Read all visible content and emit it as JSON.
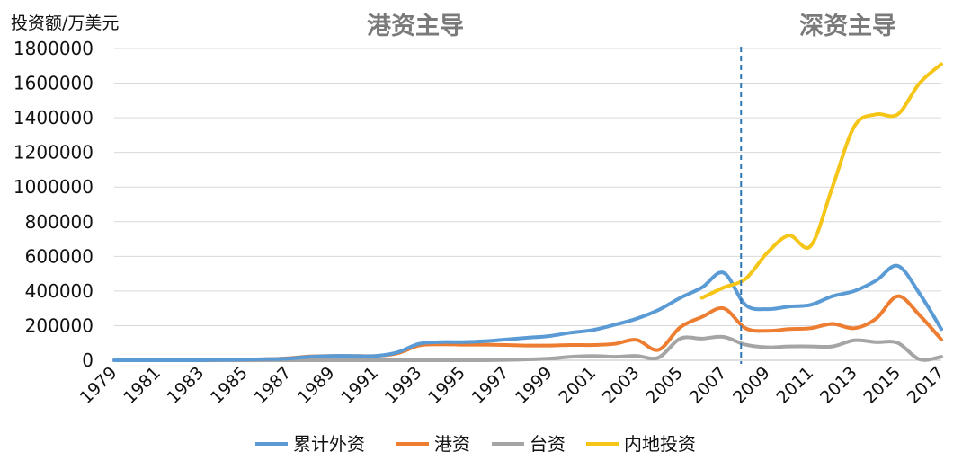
{
  "chart_data": {
    "type": "line",
    "ylabel": "投资额/万美元",
    "ylim": [
      0,
      1800000
    ],
    "yticks": [
      0,
      200000,
      400000,
      600000,
      800000,
      1000000,
      1200000,
      1400000,
      1600000,
      1800000
    ],
    "ytick_labels": [
      "0",
      "200000",
      "400000",
      "600000",
      "800000",
      "1000000",
      "1200000",
      "1400000",
      "1600000",
      "1800000"
    ],
    "xlim": [
      1979,
      2017
    ],
    "xtick_labels": [
      "1979",
      "1981",
      "1983",
      "1985",
      "1987",
      "1989",
      "1991",
      "1993",
      "1995",
      "1997",
      "1999",
      "2001",
      "2003",
      "2005",
      "2007",
      "2009",
      "2011",
      "2013",
      "2015",
      "2017"
    ],
    "grid": "horizontal",
    "legend": "bottom",
    "annotations": {
      "left_region": "港资主导",
      "right_region": "深资主导",
      "divider_x": 2007.8
    },
    "series": [
      {
        "name": "累计外资",
        "color": "#5B9BD5",
        "x": [
          1979,
          1980,
          1981,
          1982,
          1983,
          1984,
          1985,
          1986,
          1987,
          1988,
          1989,
          1990,
          1991,
          1992,
          1993,
          1994,
          1995,
          1996,
          1997,
          1998,
          1999,
          2000,
          2001,
          2002,
          2003,
          2004,
          2005,
          2006,
          2007,
          2008,
          2009,
          2010,
          2011,
          2012,
          2013,
          2014,
          2015,
          2016,
          2017
        ],
        "values": [
          0,
          0,
          0,
          0,
          0,
          2000,
          4000,
          6000,
          10000,
          20000,
          25000,
          25000,
          25000,
          45000,
          95000,
          105000,
          105000,
          110000,
          120000,
          130000,
          140000,
          160000,
          175000,
          205000,
          240000,
          290000,
          360000,
          420000,
          505000,
          320000,
          295000,
          310000,
          320000,
          370000,
          400000,
          460000,
          545000,
          385000,
          180000
        ]
      },
      {
        "name": "港资",
        "color": "#ED7D31",
        "x": [
          1979,
          1980,
          1981,
          1982,
          1983,
          1984,
          1985,
          1986,
          1987,
          1988,
          1989,
          1990,
          1991,
          1992,
          1993,
          1994,
          1995,
          1996,
          1997,
          1998,
          1999,
          2000,
          2001,
          2002,
          2003,
          2004,
          2005,
          2006,
          2007,
          2008,
          2009,
          2010,
          2011,
          2012,
          2013,
          2014,
          2015,
          2016,
          2017
        ],
        "values": [
          0,
          0,
          0,
          0,
          0,
          2000,
          4000,
          6000,
          12000,
          22000,
          25000,
          25000,
          25000,
          40000,
          85000,
          92000,
          90000,
          90000,
          88000,
          85000,
          85000,
          88000,
          88000,
          95000,
          118000,
          60000,
          190000,
          250000,
          300000,
          185000,
          170000,
          180000,
          185000,
          210000,
          185000,
          240000,
          370000,
          260000,
          120000
        ]
      },
      {
        "name": "台资",
        "color": "#A5A5A5",
        "x": [
          1979,
          1980,
          1981,
          1982,
          1983,
          1984,
          1985,
          1986,
          1987,
          1988,
          1989,
          1990,
          1991,
          1992,
          1993,
          1994,
          1995,
          1996,
          1997,
          1998,
          1999,
          2000,
          2001,
          2002,
          2003,
          2004,
          2005,
          2006,
          2007,
          2008,
          2009,
          2010,
          2011,
          2012,
          2013,
          2014,
          2015,
          2016,
          2017
        ],
        "values": [
          0,
          0,
          0,
          0,
          0,
          0,
          0,
          0,
          0,
          0,
          0,
          0,
          0,
          0,
          0,
          0,
          0,
          0,
          2000,
          5000,
          10000,
          20000,
          25000,
          20000,
          25000,
          15000,
          125000,
          125000,
          135000,
          90000,
          75000,
          80000,
          80000,
          80000,
          115000,
          105000,
          100000,
          5000,
          20000
        ]
      },
      {
        "name": "内地投资",
        "color": "#F5C518",
        "x": [
          2006,
          2007,
          2008,
          2009,
          2010,
          2011,
          2012,
          2013,
          2014,
          2015,
          2016,
          2017
        ],
        "values": [
          360000,
          420000,
          470000,
          620000,
          720000,
          660000,
          1000000,
          1350000,
          1420000,
          1420000,
          1600000,
          1710000
        ]
      }
    ]
  }
}
